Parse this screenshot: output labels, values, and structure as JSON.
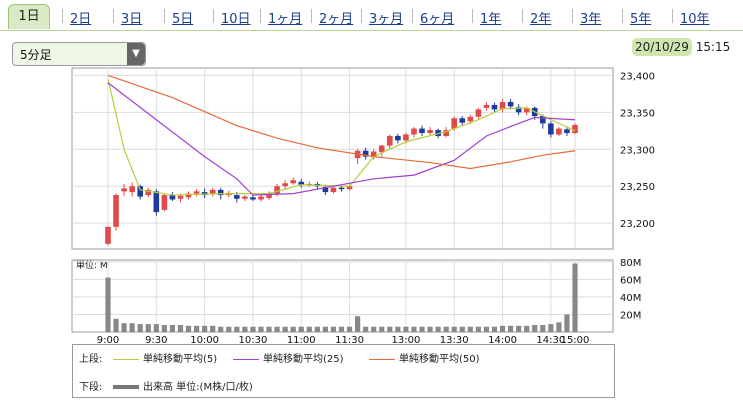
{
  "tabs": [
    "1日",
    "2日",
    "3日",
    "5日",
    "10日",
    "1ヶ月",
    "2ヶ月",
    "3ヶ月",
    "6ヶ月",
    "1年",
    "2年",
    "3年",
    "5年",
    "10年"
  ],
  "interval": {
    "selected": "5分足",
    "dropdown_icon": "triangle-down-icon"
  },
  "datetime": {
    "date": "20/10/29",
    "time": "15:15"
  },
  "colors": {
    "up": "#e24a4a",
    "down": "#1f3a9e",
    "ma5": "#b6cf3c",
    "ma25": "#a040d0",
    "ma50": "#e66a3c",
    "volume": "#888888"
  },
  "legend": {
    "upper_label": "上段:",
    "lower_label": "下段:",
    "ma5": "単純移動平均(5)",
    "ma25": "単純移動平均(25)",
    "ma50": "単純移動平均(50)",
    "volume": "出来高 単位:(M株/口/枚)"
  },
  "chart_data": {
    "type": "candlestick",
    "price_axis": {
      "ticks": [
        "23,400",
        "23,350",
        "23,300",
        "23,250",
        "23,200"
      ],
      "ylim": [
        23165,
        23410
      ]
    },
    "volume_axis": {
      "unit_label": "単位: M",
      "ticks": [
        "80M",
        "60M",
        "40M",
        "20M"
      ],
      "ylim": [
        0,
        82
      ]
    },
    "time_ticks": [
      "9:00",
      "9:30",
      "10:00",
      "10:30",
      "11:00",
      "11:30",
      "13:00",
      "13:30",
      "14:00",
      "14:30",
      "15:00"
    ],
    "candles": [
      [
        23172,
        23195,
        23170,
        23195
      ],
      [
        23195,
        23238,
        23190,
        23240
      ],
      [
        23243,
        23247,
        23237,
        23253
      ],
      [
        23242,
        23250,
        23236,
        23255
      ],
      [
        23250,
        23236,
        23232,
        23252
      ],
      [
        23238,
        23245,
        23235,
        23248
      ],
      [
        23243,
        23215,
        23210,
        23246
      ],
      [
        23218,
        23238,
        23216,
        23240
      ],
      [
        23238,
        23232,
        23230,
        23242
      ],
      [
        23233,
        23237,
        23228,
        23240
      ],
      [
        23235,
        23240,
        23232,
        23243
      ],
      [
        23240,
        23243,
        23236,
        23246
      ],
      [
        23242,
        23238,
        23234,
        23247
      ],
      [
        23240,
        23245,
        23236,
        23248
      ],
      [
        23245,
        23238,
        23232,
        23248
      ],
      [
        23238,
        23241,
        23235,
        23244
      ],
      [
        23238,
        23233,
        23228,
        23242
      ],
      [
        23233,
        23236,
        23230,
        23238
      ],
      [
        23235,
        23232,
        23230,
        23239
      ],
      [
        23232,
        23236,
        23229,
        23240
      ],
      [
        23234,
        23240,
        23231,
        23243
      ],
      [
        23240,
        23250,
        23236,
        23253
      ],
      [
        23250,
        23254,
        23246,
        23258
      ],
      [
        23254,
        23258,
        23252,
        23262
      ],
      [
        23256,
        23252,
        23248,
        23260
      ],
      [
        23252,
        23253,
        23249,
        23256
      ],
      [
        23253,
        23250,
        23246,
        23256
      ],
      [
        23249,
        23242,
        23238,
        23252
      ],
      [
        23242,
        23248,
        23240,
        23250
      ],
      [
        23248,
        23246,
        23243,
        23250
      ],
      [
        23246,
        23250,
        23244,
        23252
      ],
      [
        23288,
        23298,
        23280,
        23300
      ],
      [
        23298,
        23290,
        23286,
        23302
      ],
      [
        23290,
        23297,
        23286,
        23300
      ],
      [
        23296,
        23305,
        23290,
        23306
      ],
      [
        23305,
        23318,
        23300,
        23320
      ],
      [
        23318,
        23312,
        23308,
        23321
      ],
      [
        23312,
        23320,
        23308,
        23322
      ],
      [
        23320,
        23328,
        23316,
        23330
      ],
      [
        23328,
        23322,
        23318,
        23332
      ],
      [
        23322,
        23326,
        23319,
        23330
      ],
      [
        23326,
        23318,
        23315,
        23328
      ],
      [
        23318,
        23326,
        23316,
        23330
      ],
      [
        23328,
        23342,
        23325,
        23344
      ],
      [
        23342,
        23336,
        23332,
        23345
      ],
      [
        23338,
        23344,
        23334,
        23347
      ],
      [
        23344,
        23354,
        23340,
        23356
      ],
      [
        23356,
        23360,
        23352,
        23364
      ],
      [
        23360,
        23354,
        23350,
        23363
      ],
      [
        23354,
        23364,
        23350,
        23368
      ],
      [
        23364,
        23358,
        23354,
        23368
      ],
      [
        23357,
        23350,
        23346,
        23361
      ],
      [
        23350,
        23356,
        23346,
        23358
      ],
      [
        23356,
        23345,
        23340,
        23358
      ],
      [
        23345,
        23335,
        23328,
        23347
      ],
      [
        23335,
        23320,
        23316,
        23338
      ],
      [
        23320,
        23328,
        23318,
        23330
      ],
      [
        23327,
        23322,
        23318,
        23331
      ],
      [
        23322,
        23333,
        23320,
        23335
      ]
    ],
    "volume": [
      62,
      15,
      10,
      10,
      9,
      9,
      9,
      8,
      8,
      8,
      7,
      7,
      7,
      7,
      6,
      6,
      6,
      6,
      6,
      6,
      6,
      6,
      6,
      6,
      6,
      6,
      6,
      6,
      6,
      6,
      6,
      18,
      6,
      6,
      6,
      6,
      6,
      6,
      6,
      6,
      6,
      6,
      6,
      6,
      6,
      6,
      6,
      6,
      6,
      7,
      7,
      7,
      7,
      8,
      8,
      9,
      11,
      20,
      78
    ],
    "ma5": [
      [
        0,
        23395
      ],
      [
        2,
        23300
      ],
      [
        4,
        23245
      ],
      [
        8,
        23238
      ],
      [
        14,
        23240
      ],
      [
        20,
        23240
      ],
      [
        24,
        23252
      ],
      [
        30,
        23250
      ],
      [
        33,
        23290
      ],
      [
        37,
        23310
      ],
      [
        42,
        23324
      ],
      [
        46,
        23340
      ],
      [
        49,
        23355
      ],
      [
        52,
        23356
      ],
      [
        55,
        23340
      ],
      [
        58,
        23325
      ]
    ],
    "ma25": [
      [
        0,
        23390
      ],
      [
        6,
        23340
      ],
      [
        12,
        23290
      ],
      [
        16,
        23260
      ],
      [
        18,
        23238
      ],
      [
        23,
        23240
      ],
      [
        28,
        23250
      ],
      [
        33,
        23260
      ],
      [
        38,
        23265
      ],
      [
        43,
        23285
      ],
      [
        47,
        23318
      ],
      [
        51,
        23335
      ],
      [
        53,
        23343
      ],
      [
        58,
        23340
      ]
    ],
    "ma50": [
      [
        0,
        23400
      ],
      [
        8,
        23370
      ],
      [
        16,
        23332
      ],
      [
        21,
        23315
      ],
      [
        26,
        23302
      ],
      [
        33,
        23290
      ],
      [
        40,
        23282
      ],
      [
        45,
        23274
      ],
      [
        50,
        23283
      ],
      [
        54,
        23292
      ],
      [
        58,
        23298
      ]
    ]
  }
}
